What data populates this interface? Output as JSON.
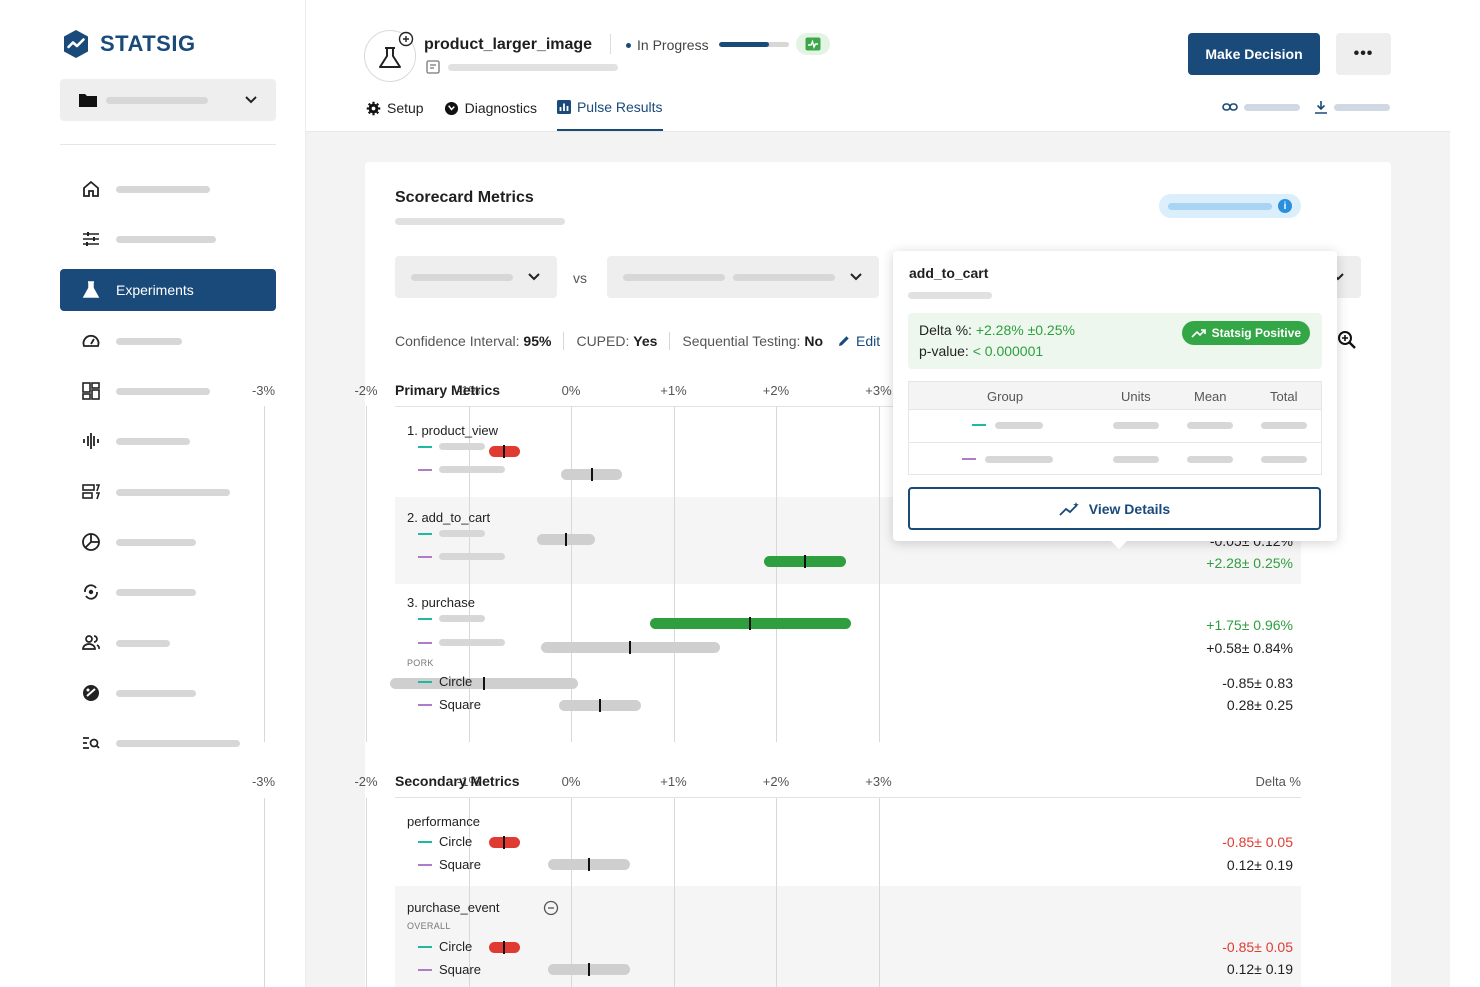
{
  "app": {
    "brand": "STATSIG",
    "brand_color": "#1a4a7a"
  },
  "sidebar": {
    "items": [
      {
        "icon": "home-icon"
      },
      {
        "icon": "sliders-icon"
      },
      {
        "icon": "flask-icon",
        "label": "Experiments",
        "active": true
      },
      {
        "icon": "gauge-icon"
      },
      {
        "icon": "dashboard-icon"
      },
      {
        "icon": "waveform-icon"
      },
      {
        "icon": "layers-icon"
      },
      {
        "icon": "segments-icon"
      },
      {
        "icon": "sync-icon"
      },
      {
        "icon": "users-icon"
      },
      {
        "icon": "palette-icon"
      },
      {
        "icon": "search-list-icon"
      }
    ]
  },
  "header": {
    "experiment_name": "product_larger_image",
    "status": "In Progress",
    "progress": 0.72,
    "make_decision": "Make Decision",
    "more": "•••",
    "tabs": [
      {
        "label": "Setup",
        "icon": "gear-icon"
      },
      {
        "label": "Diagnostics",
        "icon": "diagnostics-icon"
      },
      {
        "label": "Pulse Results",
        "icon": "chart-icon",
        "active": true
      }
    ]
  },
  "scorecard": {
    "title": "Scorecard Metrics",
    "vs": "vs",
    "settings": {
      "ci_label": "Confidence Interval:",
      "ci_value": "95%",
      "cuped_label": "CUPED:",
      "cuped_value": "Yes",
      "seq_label": "Sequential Testing:",
      "seq_value": "No",
      "edit": "Edit"
    },
    "axis_ticks": [
      "-3%",
      "-2%",
      "-1%",
      "0%",
      "+1%",
      "+2%",
      "+3%"
    ],
    "delta_header": "Delta %",
    "primary_title": "Primary Metrics",
    "secondary_title": "Secondary Metrics",
    "primary": {
      "product_view": {
        "name": "1. product_view"
      },
      "add_to_cart": {
        "name": "2. add_to_cart",
        "row1_delta": "-0.05± 0.12%",
        "row2_delta": "+2.28± 0.25%"
      },
      "purchase": {
        "name": "3. purchase",
        "row1_delta": "+1.75± 0.96%",
        "row2_delta": "+0.58± 0.84%",
        "group_caption": "PORK",
        "circle_label": "Circle",
        "circle_delta": "-0.85± 0.83",
        "square_label": "Square",
        "square_delta": "0.28± 0.25"
      }
    },
    "secondary": {
      "performance": {
        "name": "performance",
        "circle_label": "Circle",
        "circle_delta": "-0.85± 0.05",
        "square_label": "Square",
        "square_delta": "0.12± 0.19"
      },
      "purchase_event": {
        "name": "purchase_event",
        "caption": "OVERALL",
        "circle_label": "Circle",
        "circle_delta": "-0.85± 0.05",
        "square_label": "Square",
        "square_delta": "0.12± 0.19"
      }
    }
  },
  "popover": {
    "metric": "add_to_cart",
    "delta_label": "Delta %:",
    "delta_value": "+2.28% ±0.25%",
    "pvalue_label": "p-value:",
    "pvalue_value": "< 0.000001",
    "badge": "Statsig Positive",
    "columns": [
      "Group",
      "Units",
      "Mean",
      "Total"
    ],
    "view_details": "View Details"
  },
  "colors": {
    "positive": "#2e9e3e",
    "negative": "#e03b32",
    "neutral_bar": "#cfcfcf",
    "control_line": "#1fb9a3",
    "test_line": "#b07cc6"
  }
}
